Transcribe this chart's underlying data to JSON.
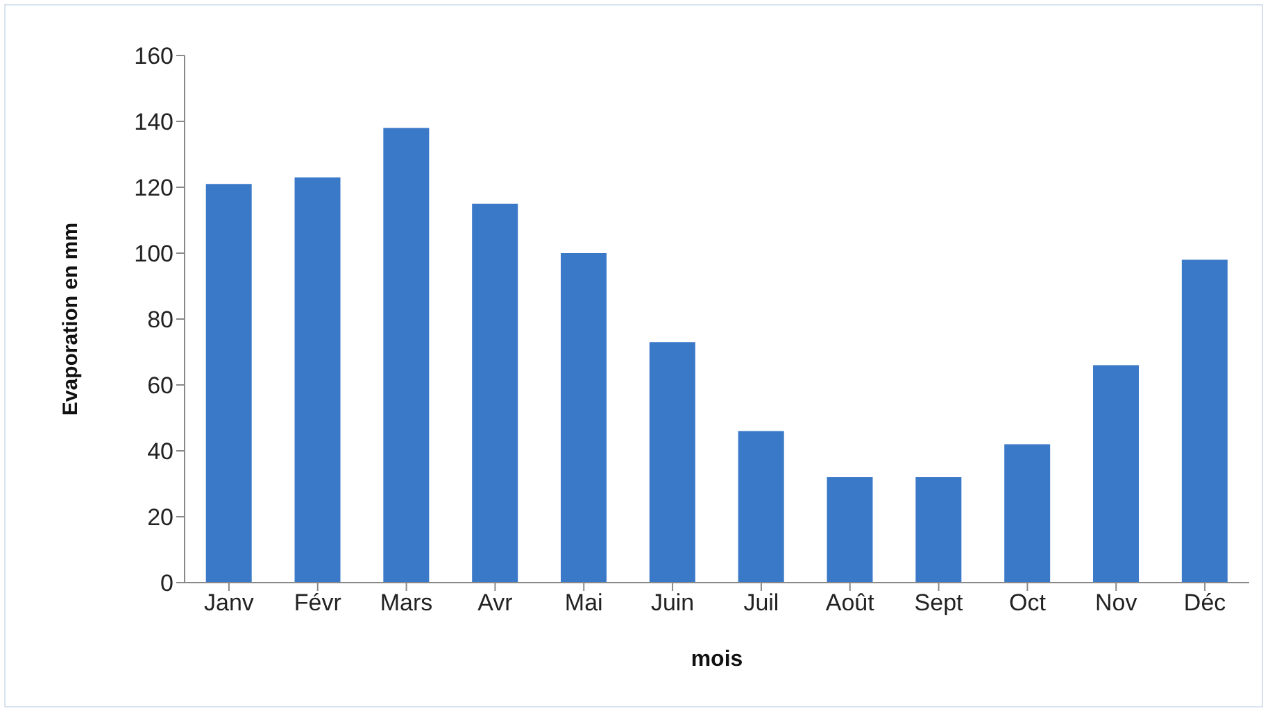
{
  "chart_data": {
    "type": "bar",
    "xlabel": "mois",
    "ylabel": "Evaporation en mm",
    "categories": [
      "Janv",
      "Févr",
      "Mars",
      "Avr",
      "Mai",
      "Juin",
      "Juil",
      "Août",
      "Sept",
      "Oct",
      "Nov",
      "Déc"
    ],
    "values": [
      121,
      123,
      138,
      115,
      100,
      73,
      46,
      32,
      32,
      42,
      66,
      98
    ],
    "color": "#3a78c8",
    "ylim": [
      0,
      160
    ],
    "yticks": [
      0,
      20,
      40,
      60,
      80,
      100,
      120,
      140,
      160
    ],
    "grid": false,
    "legend": false
  }
}
